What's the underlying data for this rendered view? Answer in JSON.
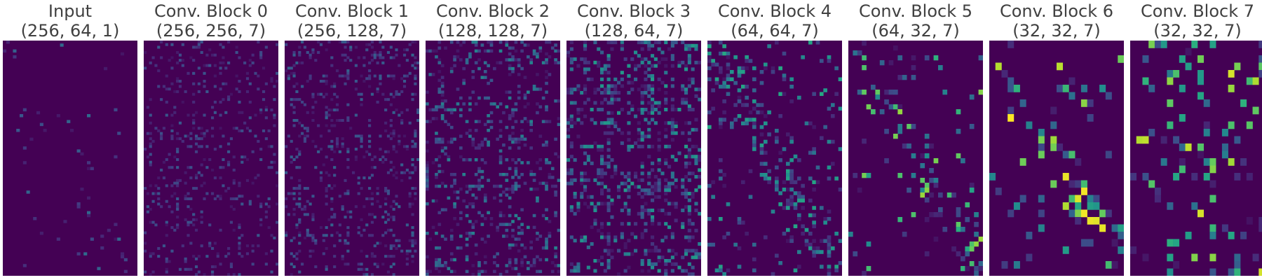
{
  "chart_data": [
    {
      "type": "heatmap",
      "title": "Input",
      "subtitle": "(256, 64, 1)",
      "shape": [
        256,
        64,
        1
      ],
      "grid": [
        80,
        40
      ],
      "seed": 11,
      "density": 0.03,
      "cluster": "diagonal",
      "peak": 0.35
    },
    {
      "type": "heatmap",
      "title": "Conv. Block 0",
      "subtitle": "(256, 256, 7)",
      "shape": [
        256,
        256,
        7
      ],
      "grid": [
        90,
        50
      ],
      "seed": 23,
      "density": 0.18,
      "cluster": "rows",
      "peak": 0.28
    },
    {
      "type": "heatmap",
      "title": "Conv. Block 1",
      "subtitle": "(256, 128, 7)",
      "shape": [
        256,
        128,
        7
      ],
      "grid": [
        90,
        50
      ],
      "seed": 37,
      "density": 0.22,
      "cluster": "rows",
      "peak": 0.32
    },
    {
      "type": "heatmap",
      "title": "Conv. Block 2",
      "subtitle": "(128, 128, 7)",
      "shape": [
        128,
        128,
        7
      ],
      "grid": [
        80,
        44
      ],
      "seed": 41,
      "density": 0.28,
      "cluster": "rows",
      "peak": 0.45
    },
    {
      "type": "heatmap",
      "title": "Conv. Block 3",
      "subtitle": "(128, 64, 7)",
      "shape": [
        128,
        64,
        7
      ],
      "grid": [
        70,
        40
      ],
      "seed": 53,
      "density": 0.3,
      "cluster": "rows",
      "peak": 0.55
    },
    {
      "type": "heatmap",
      "title": "Conv. Block 4",
      "subtitle": "(64, 64, 7)",
      "shape": [
        64,
        64,
        7
      ],
      "grid": [
        64,
        36
      ],
      "seed": 67,
      "density": 0.14,
      "cluster": "diagonal",
      "peak": 0.6
    },
    {
      "type": "heatmap",
      "title": "Conv. Block 5",
      "subtitle": "(64, 32, 7)",
      "shape": [
        64,
        32,
        7
      ],
      "grid": [
        48,
        30
      ],
      "seed": 71,
      "density": 0.1,
      "cluster": "diagonal",
      "peak": 0.85
    },
    {
      "type": "heatmap",
      "title": "Conv. Block 6",
      "subtitle": "(32, 32, 7)",
      "shape": [
        32,
        32,
        7
      ],
      "grid": [
        32,
        22
      ],
      "seed": 83,
      "density": 0.14,
      "cluster": "diagonal",
      "peak": 1.0
    },
    {
      "type": "heatmap",
      "title": "Conv. Block 7",
      "subtitle": "(32, 32, 7)",
      "shape": [
        32,
        32,
        7
      ],
      "grid": [
        32,
        22
      ],
      "seed": 97,
      "density": 0.16,
      "cluster": "rows",
      "peak": 0.95
    }
  ],
  "colormap": [
    "#440154",
    "#472c7a",
    "#3b518b",
    "#2c718e",
    "#21908d",
    "#27ad81",
    "#5cc863",
    "#aadc32",
    "#fde725"
  ]
}
